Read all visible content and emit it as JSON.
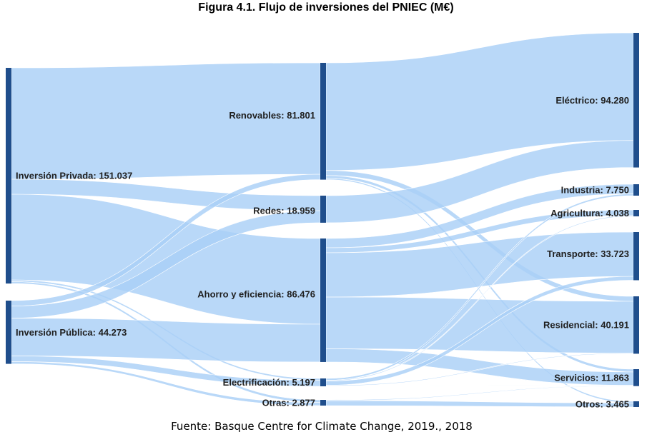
{
  "title": "Figura 4.1. Flujo de inversiones del PNIEC (M€)",
  "source": "Fuente: Basque Centre for Climate Change, 2019., 2018",
  "colors": {
    "node": "#1f4e8c",
    "link": "#a9cff7"
  },
  "nodes": [
    {
      "id": "privada",
      "label": "Inversión Privada: 151.037",
      "value": 151037,
      "column": 0
    },
    {
      "id": "publica",
      "label": "Inversión Pública: 44.273",
      "value": 44273,
      "column": 0
    },
    {
      "id": "renovables",
      "label": "Renovables: 81.801",
      "value": 81801,
      "column": 1
    },
    {
      "id": "redes",
      "label": "Redes: 18.959",
      "value": 18959,
      "column": 1
    },
    {
      "id": "ahorro",
      "label": "Ahorro y eficiencia: 86.476",
      "value": 86476,
      "column": 1
    },
    {
      "id": "electrificacion",
      "label": "Electrificación: 5.197",
      "value": 5197,
      "column": 1
    },
    {
      "id": "otras",
      "label": "Otras: 2.877",
      "value": 2877,
      "column": 1
    },
    {
      "id": "electrico",
      "label": "Eléctrico: 94.280",
      "value": 94280,
      "column": 2
    },
    {
      "id": "industria",
      "label": "Industria: 7.750",
      "value": 7750,
      "column": 2
    },
    {
      "id": "agricultura",
      "label": "Agricultura: 4.038",
      "value": 4038,
      "column": 2
    },
    {
      "id": "transporte",
      "label": "Transporte: 33.723",
      "value": 33723,
      "column": 2
    },
    {
      "id": "residencial",
      "label": "Residencial: 40.191",
      "value": 40191,
      "column": 2
    },
    {
      "id": "servicios",
      "label": "Servicios: 11.863",
      "value": 11863,
      "column": 2
    },
    {
      "id": "otros",
      "label": "Otros: 3.465",
      "value": 3465,
      "column": 2
    }
  ],
  "links": [
    {
      "source": "privada",
      "target": "renovables",
      "value": 78000
    },
    {
      "source": "privada",
      "target": "redes",
      "value": 10500
    },
    {
      "source": "privada",
      "target": "ahorro",
      "value": 60000
    },
    {
      "source": "privada",
      "target": "electrificacion",
      "value": 1200
    },
    {
      "source": "privada",
      "target": "otras",
      "value": 1337
    },
    {
      "source": "publica",
      "target": "renovables",
      "value": 3801
    },
    {
      "source": "publica",
      "target": "redes",
      "value": 8459
    },
    {
      "source": "publica",
      "target": "ahorro",
      "value": 26476
    },
    {
      "source": "publica",
      "target": "electrificacion",
      "value": 3997
    },
    {
      "source": "publica",
      "target": "otras",
      "value": 1540
    },
    {
      "source": "renovables",
      "target": "electrico",
      "value": 75321
    },
    {
      "source": "renovables",
      "target": "residencial",
      "value": 3500
    },
    {
      "source": "renovables",
      "target": "servicios",
      "value": 1980
    },
    {
      "source": "renovables",
      "target": "otros",
      "value": 1000
    },
    {
      "source": "redes",
      "target": "electrico",
      "value": 18959
    },
    {
      "source": "ahorro",
      "target": "industria",
      "value": 6500
    },
    {
      "source": "ahorro",
      "target": "agricultura",
      "value": 3500
    },
    {
      "source": "ahorro",
      "target": "transporte",
      "value": 31000
    },
    {
      "source": "ahorro",
      "target": "residencial",
      "value": 36200
    },
    {
      "source": "ahorro",
      "target": "servicios",
      "value": 9276
    },
    {
      "source": "electrificacion",
      "target": "industria",
      "value": 1250
    },
    {
      "source": "electrificacion",
      "target": "agricultura",
      "value": 538
    },
    {
      "source": "electrificacion",
      "target": "transporte",
      "value": 2723
    },
    {
      "source": "electrificacion",
      "target": "residencial",
      "value": 491
    },
    {
      "source": "electrificacion",
      "target": "servicios",
      "value": 195
    },
    {
      "source": "otras",
      "target": "servicios",
      "value": 412
    },
    {
      "source": "otras",
      "target": "otros",
      "value": 2465
    }
  ]
}
